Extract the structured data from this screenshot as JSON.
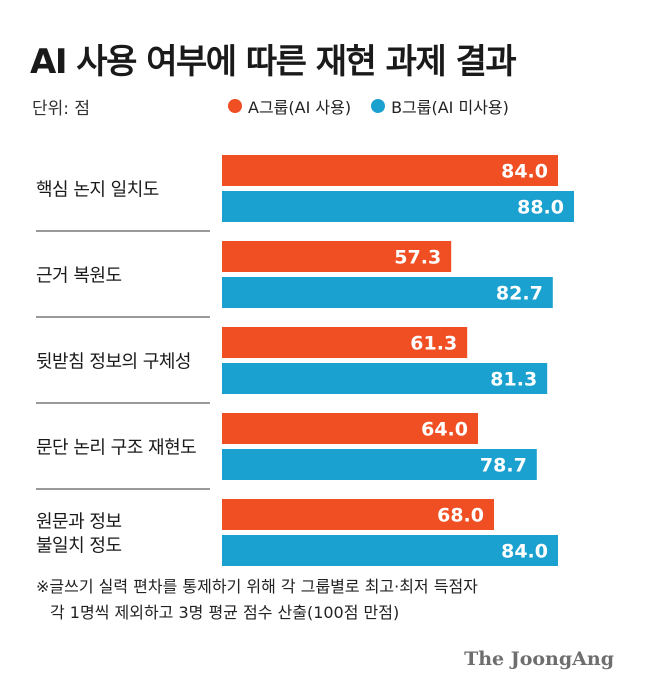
{
  "title": "AI 사용 여부에 따른 재현 과제 결과",
  "unit": "단위: 점",
  "colors": {
    "a": "#f04e23",
    "b": "#1ba1cf"
  },
  "chart_data": {
    "type": "bar",
    "orientation": "horizontal",
    "categories": [
      [
        "핵심 논지 일치도"
      ],
      [
        "근거 복원도"
      ],
      [
        "뒷받침 정보의 구체성"
      ],
      [
        "문단 논리 구조 재현도"
      ],
      [
        "원문과 정보",
        "불일치 정도"
      ]
    ],
    "series": [
      {
        "name": "A그룹(AI 사용)",
        "values": [
          84.0,
          57.3,
          61.3,
          64.0,
          68.0
        ]
      },
      {
        "name": "B그룹(AI 미사용)",
        "values": [
          88.0,
          82.7,
          81.3,
          78.7,
          84.0
        ]
      }
    ],
    "value_labels": [
      [
        "84.0",
        "57.3",
        "61.3",
        "64.0",
        "68.0"
      ],
      [
        "88.0",
        "82.7",
        "81.3",
        "78.7",
        "84.0"
      ]
    ],
    "xlim": [
      0,
      100
    ],
    "legend_position": "top"
  },
  "footnote": [
    "※글쓰기 실력 편차를 통제하기 위해 각 그룹별로 최고·최저 득점자",
    "각 1명씩 제외하고 3명 평균 점수 산출(100점 만점)"
  ],
  "brand": "The JoongAng"
}
